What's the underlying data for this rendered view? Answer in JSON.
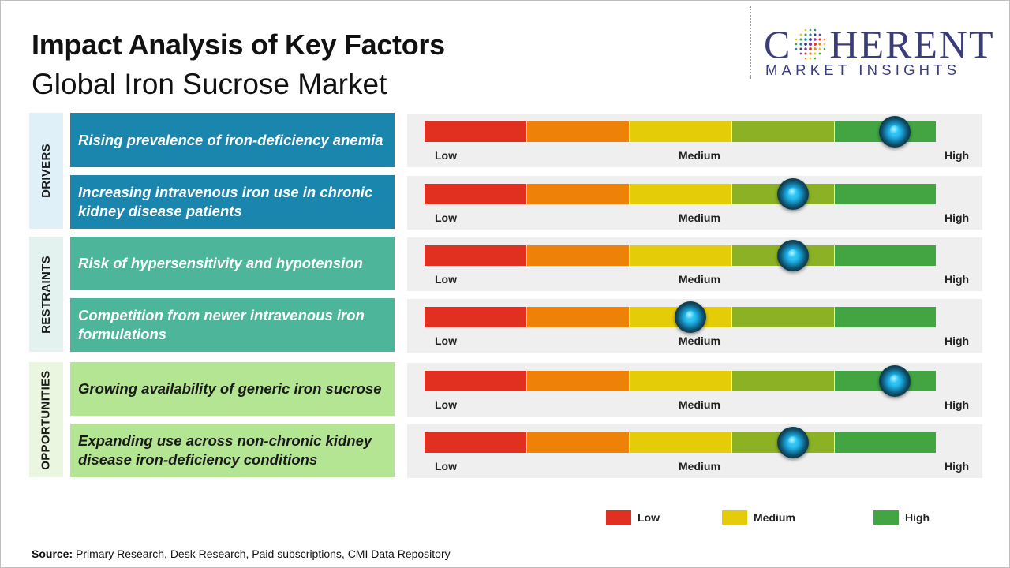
{
  "header": {
    "title": "Impact Analysis of Key Factors",
    "subtitle": "Global Iron Sucrose Market"
  },
  "logo": {
    "wordmark_left": "C",
    "wordmark_right": "HERENT",
    "tagline": "MARKET INSIGHTS"
  },
  "colors": {
    "drivers_bg": "#1b86ad",
    "restraints_bg": "#4db59a",
    "opportunities_bg": "#b3e592",
    "drivers_cat_bg": "#dff0f8",
    "restraints_cat_bg": "#e3f2ee",
    "opportunities_cat_bg": "#eaf6df",
    "segments": [
      "#e1301f",
      "#ee8208",
      "#e5cc08",
      "#8db125",
      "#42a542"
    ],
    "legend": {
      "low": "#e1301f",
      "medium": "#e5cc08",
      "high": "#42a542"
    }
  },
  "categories": [
    {
      "label": "DRIVERS"
    },
    {
      "label": "RESTRAINTS"
    },
    {
      "label": "OPPORTUNITIES"
    }
  ],
  "chart_data": {
    "type": "gauge",
    "scale_labels": {
      "low": "Low",
      "medium": "Medium",
      "high": "High"
    },
    "scale_range": [
      0,
      5
    ],
    "factors": [
      {
        "category": "DRIVERS",
        "text": "Rising prevalence of iron-deficiency anemia",
        "impact": 4.6
      },
      {
        "category": "DRIVERS",
        "text": "Increasing intravenous iron use in chronic kidney disease patients",
        "impact": 3.6
      },
      {
        "category": "RESTRAINTS",
        "text": "Risk of hypersensitivity and hypotension",
        "impact": 3.6
      },
      {
        "category": "RESTRAINTS",
        "text": "Competition from newer intravenous iron formulations",
        "impact": 2.6
      },
      {
        "category": "OPPORTUNITIES",
        "text": "Growing availability of generic iron sucrose",
        "impact": 4.6
      },
      {
        "category": "OPPORTUNITIES",
        "text": "Expanding use across non-chronic kidney disease iron-deficiency conditions",
        "impact": 3.6
      }
    ],
    "legend": [
      "Low",
      "Medium",
      "High"
    ]
  },
  "footer": {
    "source_label": "Source:",
    "source_text": " Primary Research, Desk Research, Paid subscriptions, CMI Data Repository"
  }
}
